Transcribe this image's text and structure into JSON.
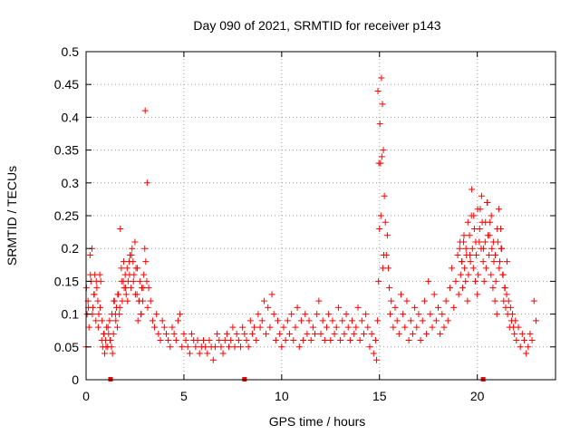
{
  "chart_data": {
    "type": "scatter",
    "title": "Day 090 of 2021, SRMTID for receiver p143",
    "xlabel": "GPS time / hours",
    "ylabel": "SRMTID / TECUs",
    "xlim": [
      0,
      24
    ],
    "ylim": [
      0,
      0.5
    ],
    "xticks": [
      0,
      5,
      10,
      15,
      20
    ],
    "yticks": [
      0,
      0.05,
      0.1,
      0.15,
      0.2,
      0.25,
      0.3,
      0.35,
      0.4,
      0.45,
      0.5
    ],
    "ytick_labels": [
      "0",
      "0.05",
      "0.1",
      "0.15",
      "0.2",
      "0.25",
      "0.3",
      "0.35",
      "0.4",
      "0.45",
      "0.5"
    ],
    "grid": true,
    "marker": "+",
    "color": "#ff0000",
    "series": [
      {
        "name": "SRMTID",
        "x": [
          0.0,
          0.05,
          0.1,
          0.15,
          0.2,
          0.25,
          0.3,
          0.35,
          0.4,
          0.45,
          0.5,
          0.55,
          0.6,
          0.65,
          0.7,
          0.75,
          0.8,
          0.85,
          0.9,
          0.95,
          1.0,
          1.05,
          1.1,
          1.15,
          1.2,
          1.25,
          1.3,
          1.35,
          1.4,
          1.45,
          1.5,
          1.55,
          1.6,
          1.65,
          1.7,
          1.75,
          1.8,
          1.85,
          1.9,
          1.95,
          2.0,
          2.05,
          2.1,
          2.15,
          2.2,
          2.25,
          2.3,
          2.35,
          2.4,
          2.45,
          2.5,
          2.55,
          2.6,
          2.65,
          2.7,
          2.75,
          2.8,
          2.85,
          2.9,
          2.95,
          3.0,
          3.05,
          3.1,
          3.15,
          3.2,
          3.3,
          3.4,
          3.5,
          3.6,
          3.7,
          3.8,
          3.9,
          4.0,
          4.1,
          4.2,
          4.3,
          4.4,
          4.5,
          4.6,
          4.7,
          4.8,
          4.9,
          5.0,
          5.1,
          5.2,
          5.3,
          5.4,
          5.5,
          5.6,
          5.7,
          5.8,
          5.9,
          6.0,
          6.1,
          6.2,
          6.3,
          6.4,
          6.5,
          6.6,
          6.7,
          6.8,
          6.9,
          7.0,
          7.1,
          7.2,
          7.3,
          7.4,
          7.5,
          7.6,
          7.7,
          7.8,
          7.9,
          8.0,
          8.1,
          8.2,
          8.3,
          8.4,
          8.5,
          8.6,
          8.7,
          8.8,
          8.9,
          9.0,
          9.1,
          9.2,
          9.3,
          9.4,
          9.5,
          9.6,
          9.7,
          9.8,
          9.9,
          10.0,
          10.1,
          10.2,
          10.3,
          10.4,
          10.5,
          10.6,
          10.7,
          10.8,
          10.9,
          11.0,
          11.1,
          11.2,
          11.3,
          11.4,
          11.5,
          11.6,
          11.7,
          11.8,
          11.9,
          12.0,
          12.1,
          12.2,
          12.3,
          12.4,
          12.5,
          12.6,
          12.7,
          12.8,
          12.9,
          13.0,
          13.1,
          13.2,
          13.3,
          13.4,
          13.5,
          13.6,
          13.7,
          13.8,
          13.9,
          14.0,
          14.1,
          14.2,
          14.3,
          14.4,
          14.5,
          14.6,
          14.7,
          14.8,
          14.85,
          14.9,
          14.95,
          15.0,
          15.05,
          15.1,
          15.15,
          15.2,
          15.25,
          15.3,
          15.35,
          15.4,
          15.45,
          15.5,
          15.55,
          15.6,
          15.7,
          15.8,
          15.9,
          16.0,
          16.1,
          16.2,
          16.3,
          16.4,
          16.5,
          16.6,
          16.7,
          16.8,
          16.9,
          17.0,
          17.1,
          17.2,
          17.3,
          17.4,
          17.5,
          17.6,
          17.7,
          17.8,
          17.9,
          18.0,
          18.1,
          18.2,
          18.3,
          18.4,
          18.5,
          18.6,
          18.7,
          18.8,
          18.9,
          19.0,
          19.05,
          19.1,
          19.15,
          19.2,
          19.25,
          19.3,
          19.35,
          19.4,
          19.45,
          19.5,
          19.55,
          19.6,
          19.65,
          19.7,
          19.75,
          19.8,
          19.85,
          19.9,
          19.95,
          20.0,
          20.05,
          20.1,
          20.15,
          20.2,
          20.25,
          20.3,
          20.35,
          20.4,
          20.45,
          20.5,
          20.55,
          20.6,
          20.65,
          20.7,
          20.75,
          20.8,
          20.85,
          20.9,
          20.95,
          21.0,
          21.05,
          21.1,
          21.15,
          21.2,
          21.25,
          21.3,
          21.35,
          21.4,
          21.45,
          21.5,
          21.55,
          21.6,
          21.65,
          21.7,
          21.75,
          21.8,
          21.85,
          21.9,
          21.95,
          22.0,
          22.1,
          22.2,
          22.3,
          22.4,
          22.5,
          22.6,
          22.7,
          22.8,
          22.9,
          23.0,
          0.02,
          0.12,
          0.22,
          0.32,
          0.42,
          0.52,
          0.62,
          0.72,
          0.82,
          0.92,
          1.02,
          1.12,
          1.22,
          1.32,
          1.42,
          1.52,
          1.62,
          1.72,
          1.82,
          1.92,
          2.02,
          2.12,
          2.22,
          2.32,
          2.42,
          2.52,
          2.62,
          2.72,
          2.82,
          2.92,
          3.02,
          3.12,
          14.92,
          14.97,
          15.02,
          15.07,
          15.12,
          15.17,
          15.22,
          19.12,
          19.22,
          19.32,
          19.42,
          19.52,
          19.62,
          19.72,
          19.82,
          19.92,
          20.02,
          20.12,
          20.22,
          20.32,
          20.42,
          20.52,
          20.62,
          20.72,
          20.82,
          20.92,
          21.02,
          21.12,
          21.22,
          21.32,
          21.42,
          21.52
        ],
        "y": [
          0.05,
          0.1,
          0.12,
          0.08,
          0.19,
          0.15,
          0.2,
          0.11,
          0.13,
          0.16,
          0.09,
          0.14,
          0.12,
          0.1,
          0.16,
          0.15,
          0.06,
          0.05,
          0.07,
          0.04,
          0.06,
          0.08,
          0.05,
          0.07,
          0.09,
          0.06,
          0.05,
          0.04,
          0.07,
          0.12,
          0.1,
          0.11,
          0.08,
          0.13,
          0.1,
          0.23,
          0.17,
          0.12,
          0.15,
          0.14,
          0.16,
          0.13,
          0.17,
          0.15,
          0.18,
          0.19,
          0.14,
          0.2,
          0.18,
          0.16,
          0.21,
          0.17,
          0.13,
          0.09,
          0.12,
          0.15,
          0.1,
          0.14,
          0.12,
          0.16,
          0.2,
          0.18,
          0.15,
          0.11,
          0.14,
          0.12,
          0.09,
          0.08,
          0.1,
          0.07,
          0.06,
          0.09,
          0.08,
          0.07,
          0.06,
          0.05,
          0.08,
          0.07,
          0.06,
          0.09,
          0.1,
          0.05,
          0.07,
          0.06,
          0.05,
          0.04,
          0.07,
          0.06,
          0.05,
          0.06,
          0.04,
          0.05,
          0.06,
          0.05,
          0.04,
          0.06,
          0.05,
          0.03,
          0.05,
          0.07,
          0.06,
          0.05,
          0.04,
          0.06,
          0.07,
          0.05,
          0.06,
          0.08,
          0.05,
          0.07,
          0.06,
          0.05,
          0.08,
          0.07,
          0.06,
          0.05,
          0.09,
          0.07,
          0.08,
          0.06,
          0.1,
          0.08,
          0.09,
          0.12,
          0.07,
          0.11,
          0.08,
          0.13,
          0.1,
          0.06,
          0.09,
          0.07,
          0.05,
          0.08,
          0.06,
          0.09,
          0.07,
          0.1,
          0.06,
          0.08,
          0.11,
          0.05,
          0.09,
          0.06,
          0.1,
          0.07,
          0.09,
          0.06,
          0.08,
          0.07,
          0.1,
          0.12,
          0.07,
          0.09,
          0.06,
          0.08,
          0.1,
          0.06,
          0.09,
          0.07,
          0.08,
          0.11,
          0.06,
          0.09,
          0.07,
          0.1,
          0.08,
          0.06,
          0.09,
          0.07,
          0.08,
          0.11,
          0.06,
          0.09,
          0.07,
          0.1,
          0.08,
          0.05,
          0.07,
          0.04,
          0.06,
          0.03,
          0.09,
          0.15,
          0.23,
          0.33,
          0.46,
          0.42,
          0.35,
          0.28,
          0.24,
          0.19,
          0.22,
          0.17,
          0.14,
          0.1,
          0.12,
          0.08,
          0.11,
          0.09,
          0.07,
          0.13,
          0.1,
          0.08,
          0.12,
          0.06,
          0.09,
          0.07,
          0.11,
          0.08,
          0.1,
          0.06,
          0.09,
          0.12,
          0.07,
          0.15,
          0.1,
          0.08,
          0.13,
          0.09,
          0.11,
          0.07,
          0.1,
          0.08,
          0.12,
          0.09,
          0.14,
          0.17,
          0.11,
          0.15,
          0.19,
          0.13,
          0.2,
          0.16,
          0.18,
          0.14,
          0.21,
          0.17,
          0.15,
          0.19,
          0.12,
          0.16,
          0.22,
          0.18,
          0.25,
          0.2,
          0.17,
          0.23,
          0.15,
          0.19,
          0.13,
          0.16,
          0.21,
          0.26,
          0.2,
          0.24,
          0.18,
          0.15,
          0.21,
          0.17,
          0.27,
          0.22,
          0.19,
          0.24,
          0.16,
          0.2,
          0.14,
          0.18,
          0.12,
          0.15,
          0.1,
          0.21,
          0.26,
          0.18,
          0.23,
          0.2,
          0.16,
          0.12,
          0.14,
          0.11,
          0.13,
          0.1,
          0.12,
          0.08,
          0.11,
          0.09,
          0.1,
          0.08,
          0.07,
          0.09,
          0.06,
          0.08,
          0.05,
          0.07,
          0.06,
          0.04,
          0.05,
          0.07,
          0.06,
          0.12,
          0.09,
          0.14,
          0.11,
          0.16,
          0.1,
          0.13,
          0.15,
          0.08,
          0.11,
          0.09,
          0.07,
          0.05,
          0.08,
          0.06,
          0.1,
          0.12,
          0.09,
          0.13,
          0.11,
          0.15,
          0.18,
          0.14,
          0.12,
          0.16,
          0.19,
          0.15,
          0.13,
          0.17,
          0.12,
          0.1,
          0.14,
          0.41,
          0.3,
          0.44,
          0.33,
          0.39,
          0.25,
          0.34,
          0.17,
          0.19,
          0.21,
          0.18,
          0.22,
          0.2,
          0.24,
          0.19,
          0.29,
          0.25,
          0.21,
          0.26,
          0.23,
          0.28,
          0.2,
          0.24,
          0.27,
          0.22,
          0.25,
          0.21,
          0.19,
          0.23,
          0.17,
          0.2,
          0.16,
          0.14,
          0.18
        ]
      }
    ],
    "x_marks": [
      1.25,
      8.1,
      20.3
    ]
  }
}
